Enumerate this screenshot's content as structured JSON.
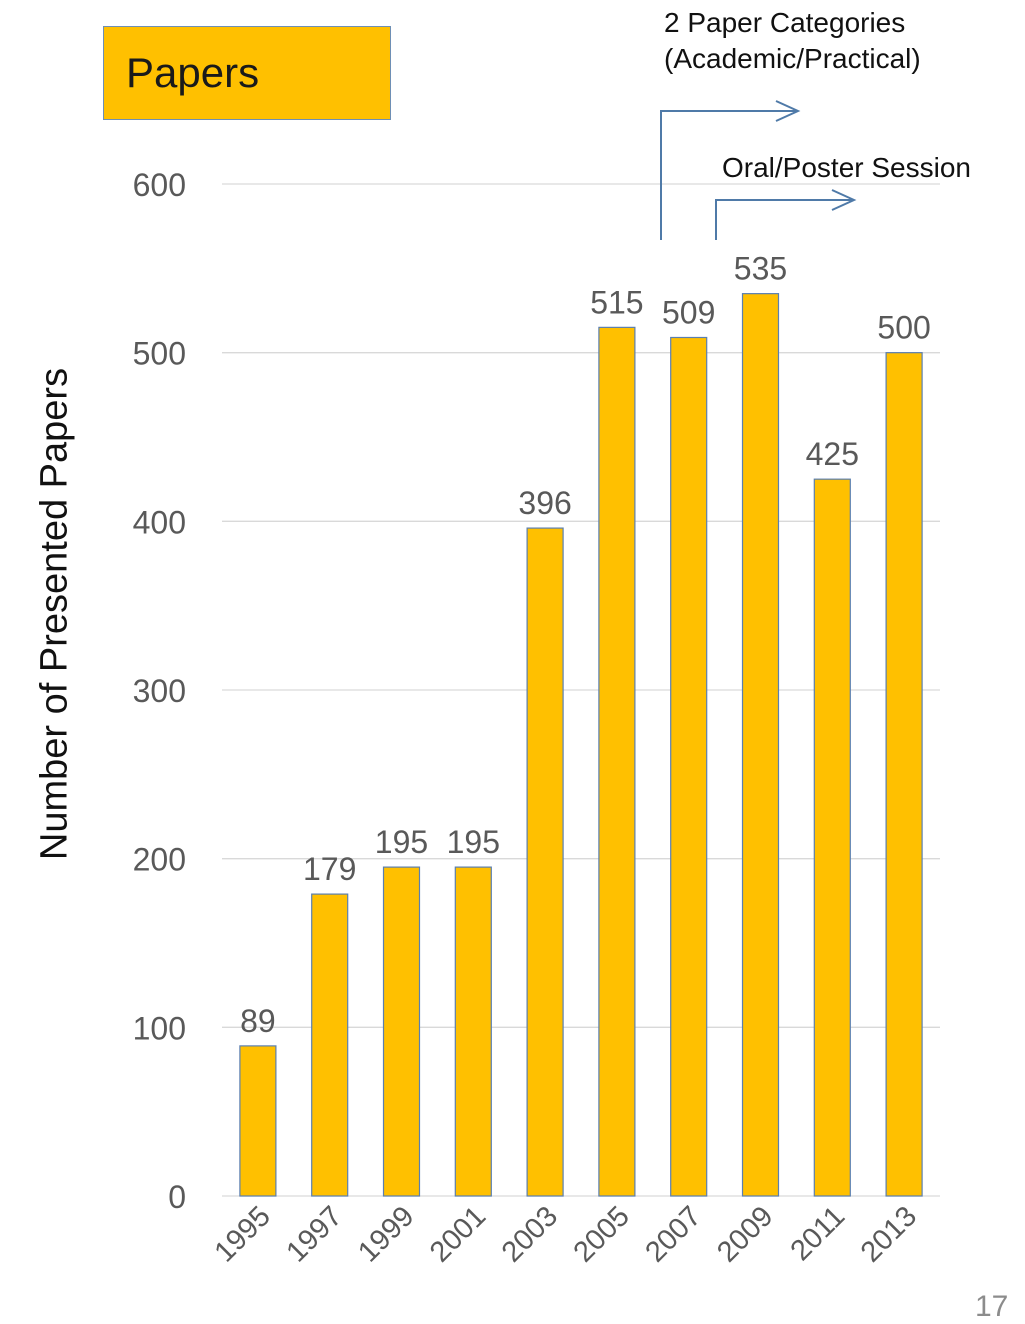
{
  "title": "Papers",
  "annotations": {
    "categories_line1": "2 Paper Categories",
    "categories_line2": "(Academic/Practical)",
    "sessions": "Oral/Poster Session"
  },
  "page_number": "17",
  "colors": {
    "bar": "#FFC000",
    "bar_border": "#5B7FAF",
    "grid": "#D9D9D9",
    "tick": "#595959",
    "arrow": "#4F7AA8"
  },
  "chart_data": {
    "type": "bar",
    "title": "Papers",
    "xlabel": "",
    "ylabel": "Number of Presented Papers",
    "categories": [
      "1995",
      "1997",
      "1999",
      "2001",
      "2003",
      "2005",
      "2007",
      "2009",
      "2011",
      "2013"
    ],
    "values": [
      89,
      179,
      195,
      195,
      396,
      515,
      509,
      535,
      425,
      500
    ],
    "ylim": [
      0,
      600
    ],
    "yticks": [
      0,
      100,
      200,
      300,
      400,
      500,
      600
    ],
    "grid": true,
    "legend": "none"
  }
}
